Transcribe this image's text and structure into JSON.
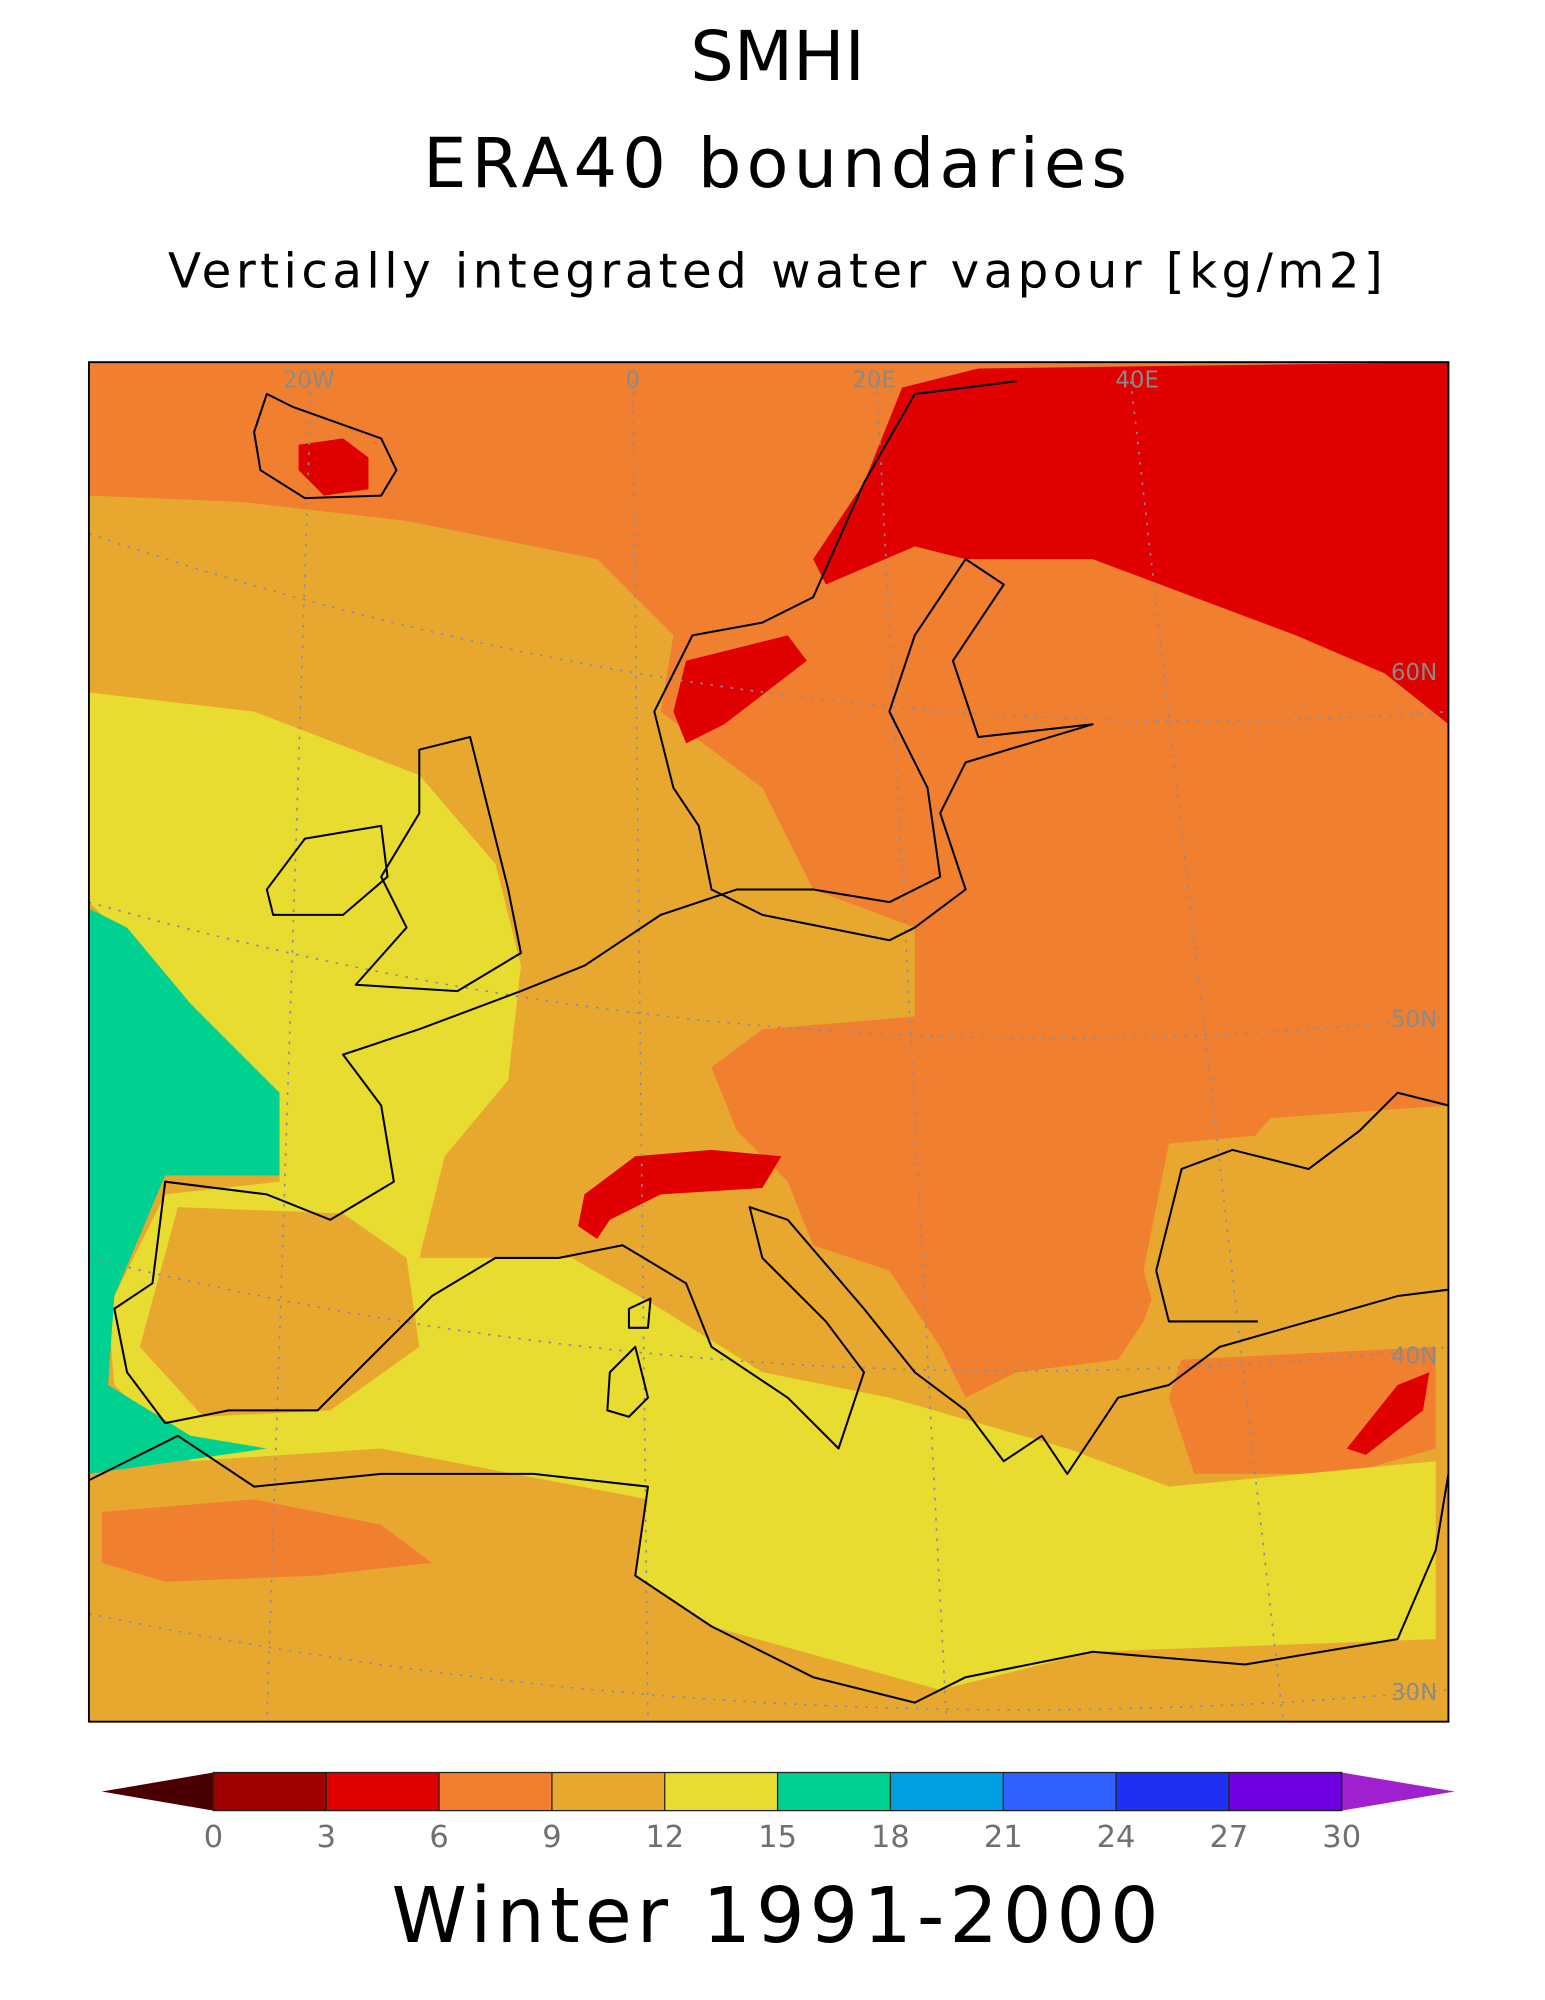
{
  "header": {
    "institute": "SMHI",
    "experiment": "ERA40 boundaries",
    "variable": "Vertically integrated water vapour [kg/m2]"
  },
  "map": {
    "grid_labels": [
      "20W",
      "0",
      "20E",
      "40E",
      "60N",
      "50N",
      "40N",
      "30N"
    ]
  },
  "colorbar": {
    "ticks": [
      0,
      3,
      6,
      9,
      12,
      15,
      18,
      21,
      24,
      27,
      30
    ],
    "colors": [
      "#a00000",
      "#e00000",
      "#f08030",
      "#e8a830",
      "#e8dc30",
      "#00d090",
      "#00a0e0",
      "#3060ff",
      "#2030f0",
      "#7000e0"
    ],
    "under_color": "#4a0000",
    "over_color": "#a020d0"
  },
  "footer": "Winter 1991-2000"
}
